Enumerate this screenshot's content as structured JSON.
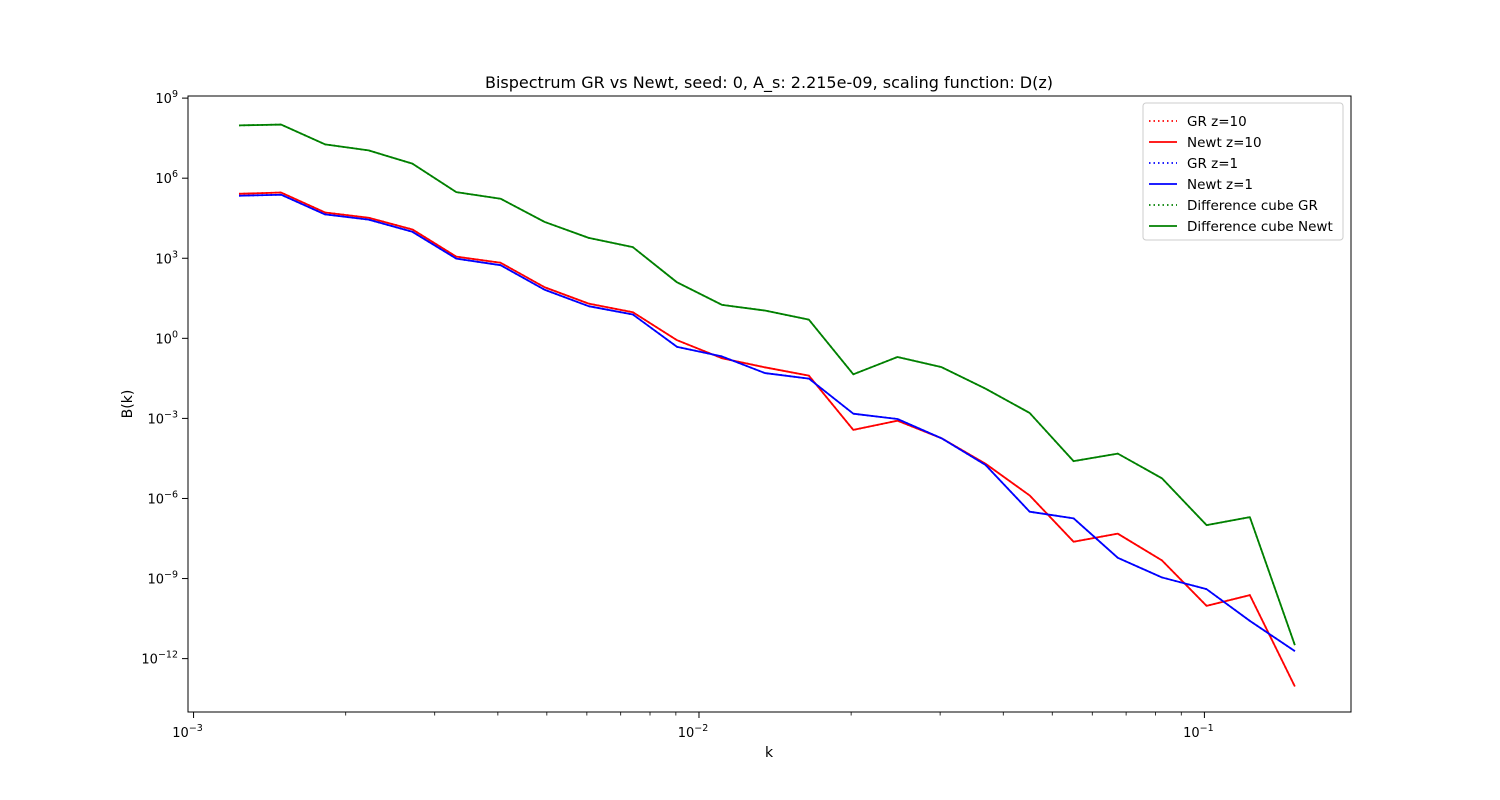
{
  "chart_data": {
    "type": "line",
    "title": "Bispectrum GR vs Newt, seed: 0, A_s: 2.215e-09, scaling function: D(z)",
    "xlabel": "k",
    "ylabel": "B(k)",
    "xscale": "log",
    "yscale": "log",
    "xlim": [
      0.000975,
      0.195
    ],
    "ylim": [
      1e-14,
      1200000000.0
    ],
    "grid": false,
    "legend_position": "top-right",
    "x_ticks": [
      {
        "value": 0.001,
        "base": "10",
        "exp": "−3"
      },
      {
        "value": 0.01,
        "base": "10",
        "exp": "−2"
      },
      {
        "value": 0.1,
        "base": "10",
        "exp": "−1"
      }
    ],
    "y_ticks": [
      {
        "value": 1000000000.0,
        "base": "10",
        "exp": "9"
      },
      {
        "value": 1000000.0,
        "base": "10",
        "exp": "6"
      },
      {
        "value": 1000.0,
        "base": "10",
        "exp": "3"
      },
      {
        "value": 1,
        "base": "10",
        "exp": "0"
      },
      {
        "value": 0.001,
        "base": "10",
        "exp": "−3"
      },
      {
        "value": 1e-06,
        "base": "10",
        "exp": "−6"
      },
      {
        "value": 1e-09,
        "base": "10",
        "exp": "−9"
      },
      {
        "value": 1e-12,
        "base": "10",
        "exp": "−12"
      }
    ],
    "x": [
      0.00123,
      0.00149,
      0.00182,
      0.00222,
      0.00271,
      0.00331,
      0.00405,
      0.00495,
      0.00605,
      0.0074,
      0.00905,
      0.0111,
      0.0135,
      0.0165,
      0.0202,
      0.0247,
      0.0302,
      0.0369,
      0.0451,
      0.0551,
      0.0674,
      0.0824,
      0.101,
      0.123,
      0.151
    ],
    "series": [
      {
        "name": "GR z=10",
        "color": "#ff0000",
        "dash": "dotted",
        "values": [
          260000.0,
          290000.0,
          52000.0,
          33000.0,
          12000.0,
          1150.0,
          680.0,
          82,
          20,
          9.5,
          0.85,
          0.18,
          0.082,
          0.04,
          0.00037,
          0.00082,
          0.00018,
          2e-05,
          1.3e-06,
          2.4e-08,
          4.8e-08,
          4.8e-09,
          9.5e-11,
          2.4e-10,
          9e-14
        ]
      },
      {
        "name": "Newt z=10",
        "color": "#ff0000",
        "dash": "solid",
        "values": [
          260000.0,
          290000.0,
          52000.0,
          33000.0,
          12000.0,
          1150.0,
          680.0,
          82,
          20,
          9.5,
          0.85,
          0.18,
          0.082,
          0.04,
          0.00037,
          0.00082,
          0.00018,
          2e-05,
          1.3e-06,
          2.4e-08,
          4.8e-08,
          4.8e-09,
          9.5e-11,
          2.4e-10,
          9e-14
        ]
      },
      {
        "name": "GR z=1",
        "color": "#0000ff",
        "dash": "dotted",
        "values": [
          220000.0,
          240000.0,
          44000.0,
          28000.0,
          9800.0,
          970.0,
          550.0,
          66,
          16,
          7.8,
          0.48,
          0.21,
          0.05,
          0.031,
          0.0015,
          0.00095,
          0.00018,
          1.8e-05,
          3.2e-07,
          1.8e-07,
          6e-09,
          1.1e-09,
          4e-10,
          2.6e-11,
          1.9e-12
        ]
      },
      {
        "name": "Newt z=1",
        "color": "#0000ff",
        "dash": "solid",
        "values": [
          220000.0,
          240000.0,
          44000.0,
          28000.0,
          9800.0,
          970.0,
          550.0,
          66,
          16,
          7.8,
          0.48,
          0.21,
          0.05,
          0.031,
          0.0015,
          0.00095,
          0.00018,
          1.8e-05,
          3.2e-07,
          1.8e-07,
          6e-09,
          1.1e-09,
          4e-10,
          2.6e-11,
          1.9e-12
        ]
      },
      {
        "name": "Difference cube GR",
        "color": "#008000",
        "dash": "dotted",
        "values": [
          95000000.0,
          102000000.0,
          18500000.0,
          11000000.0,
          3500000.0,
          300000.0,
          170000.0,
          23000.0,
          5800.0,
          2600.0,
          125.0,
          18,
          11,
          5.0,
          0.045,
          0.2,
          0.083,
          0.013,
          0.0016,
          2.5e-05,
          4.8e-05,
          5.7e-06,
          1e-07,
          2e-07,
          3.2e-12
        ]
      },
      {
        "name": "Difference cube Newt",
        "color": "#008000",
        "dash": "solid",
        "values": [
          95000000.0,
          102000000.0,
          18500000.0,
          11000000.0,
          3500000.0,
          300000.0,
          170000.0,
          23000.0,
          5800.0,
          2600.0,
          125.0,
          18,
          11,
          5.0,
          0.045,
          0.2,
          0.083,
          0.013,
          0.0016,
          2.5e-05,
          4.8e-05,
          5.7e-06,
          1e-07,
          2e-07,
          3.2e-12
        ]
      }
    ]
  }
}
